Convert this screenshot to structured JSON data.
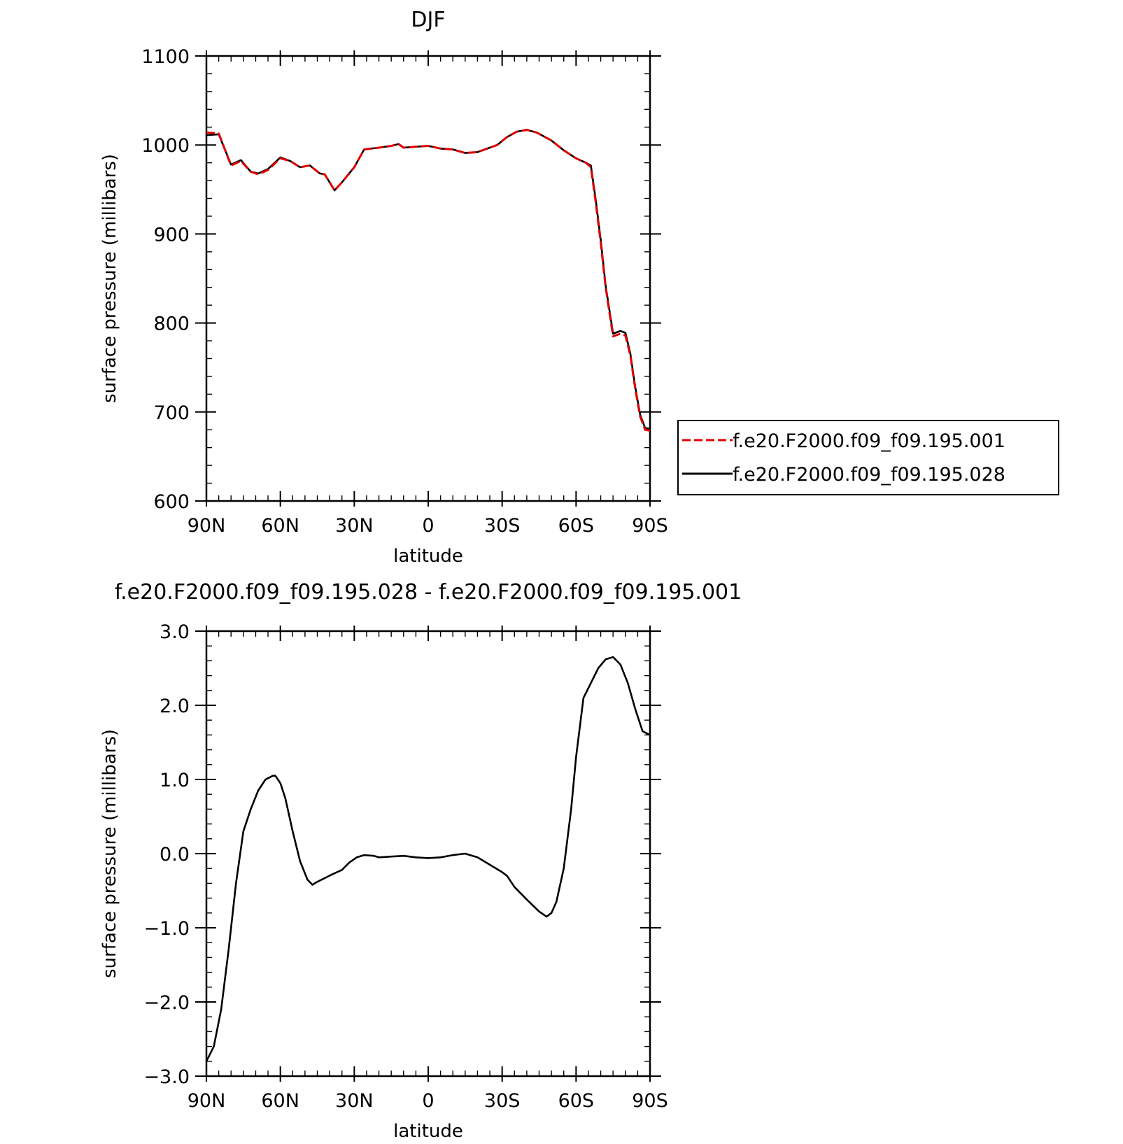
{
  "chart_data": [
    {
      "type": "line",
      "title": "DJF",
      "xlabel": "latitude",
      "ylabel": "surface pressure (millibars)",
      "xlim": [
        90,
        -90
      ],
      "ylim": [
        600,
        1100
      ],
      "x_tick_labels": [
        "90N",
        "60N",
        "30N",
        "0",
        "30S",
        "60S",
        "90S"
      ],
      "x_tick_values": [
        90,
        60,
        30,
        0,
        -30,
        -60,
        -90
      ],
      "y_tick_labels": [
        "600",
        "700",
        "800",
        "900",
        "1000",
        "1100"
      ],
      "y_tick_values": [
        600,
        700,
        800,
        900,
        1000,
        1100
      ],
      "legend_position": "right",
      "x": [
        90,
        85,
        80,
        76,
        72,
        69,
        65,
        60,
        56,
        52,
        48,
        44,
        42,
        38,
        35,
        30,
        26,
        20,
        15,
        12,
        10,
        5,
        0,
        -5,
        -10,
        -15,
        -20,
        -28,
        -32,
        -36,
        -40,
        -44,
        -50,
        -55,
        -60,
        -64,
        -66,
        -68,
        -70,
        -72,
        -75,
        -78,
        -80,
        -82,
        -84,
        -86,
        -88,
        -90
      ],
      "series": [
        {
          "name": "f.e20.F2000.f09_f09.195.001",
          "color": "#e00000",
          "dash": true,
          "values": [
            1014,
            1013,
            977,
            982,
            970,
            967,
            972,
            985,
            982,
            975,
            977,
            968,
            967,
            949,
            958,
            975,
            995,
            997,
            999,
            1001,
            997,
            998,
            999,
            996,
            995,
            991,
            992,
            1000,
            1009,
            1015,
            1017,
            1014,
            1005,
            994,
            985,
            980,
            975,
            935,
            890,
            840,
            785,
            788,
            786,
            764,
            726,
            695,
            680,
            679
          ]
        },
        {
          "name": "f.e20.F2000.f09_f09.195.028",
          "color": "#000000",
          "dash": false,
          "values": [
            1011,
            1012,
            978,
            983,
            970,
            968,
            973,
            986,
            982,
            975,
            977,
            968,
            967,
            949,
            958,
            975,
            995,
            997,
            999,
            1001,
            997,
            998,
            999,
            996,
            995,
            991,
            992,
            1000,
            1009,
            1015,
            1017,
            1014,
            1005,
            994,
            985,
            980,
            977,
            938,
            893,
            842,
            788,
            791,
            789,
            766,
            728,
            697,
            682,
            681
          ]
        }
      ]
    },
    {
      "type": "line",
      "title": "f.e20.F2000.f09_f09.195.028 - f.e20.F2000.f09_f09.195.001",
      "xlabel": "latitude",
      "ylabel": "surface pressure (millibars)",
      "xlim": [
        90,
        -90
      ],
      "ylim": [
        -3.0,
        3.0
      ],
      "x_tick_labels": [
        "90N",
        "60N",
        "30N",
        "0",
        "30S",
        "60S",
        "90S"
      ],
      "x_tick_values": [
        90,
        60,
        30,
        0,
        -30,
        -60,
        -90
      ],
      "y_tick_labels": [
        "−3.0",
        "−2.0",
        "−1.0",
        "0.0",
        "1.0",
        "2.0",
        "3.0"
      ],
      "y_tick_values": [
        -3,
        -2,
        -1,
        0,
        1,
        2,
        3
      ],
      "x": [
        90,
        87,
        84,
        81,
        78,
        75,
        72,
        69,
        66,
        63,
        62,
        60,
        58,
        55,
        52,
        49,
        47,
        45,
        42,
        39,
        35,
        32,
        29,
        26,
        22,
        20,
        15,
        10,
        5,
        0,
        -5,
        -10,
        -15,
        -20,
        -25,
        -30,
        -32,
        -35,
        -40,
        -45,
        -48,
        -50,
        -52,
        -55,
        -58,
        -60,
        -63,
        -66,
        -69,
        -72,
        -75,
        -78,
        -81,
        -84,
        -87,
        -90
      ],
      "series": [
        {
          "name": "",
          "color": "#000000",
          "values": [
            -2.8,
            -2.6,
            -2.1,
            -1.3,
            -0.4,
            0.3,
            0.6,
            0.85,
            1.0,
            1.05,
            1.05,
            0.95,
            0.75,
            0.3,
            -0.1,
            -0.35,
            -0.42,
            -0.38,
            -0.33,
            -0.28,
            -0.22,
            -0.12,
            -0.05,
            -0.02,
            -0.03,
            -0.05,
            -0.04,
            -0.03,
            -0.05,
            -0.06,
            -0.05,
            -0.02,
            0.0,
            -0.05,
            -0.15,
            -0.25,
            -0.3,
            -0.45,
            -0.62,
            -0.78,
            -0.85,
            -0.8,
            -0.65,
            -0.2,
            0.6,
            1.3,
            2.1,
            2.3,
            2.5,
            2.62,
            2.65,
            2.55,
            2.3,
            1.95,
            1.65,
            1.6
          ]
        }
      ]
    }
  ]
}
